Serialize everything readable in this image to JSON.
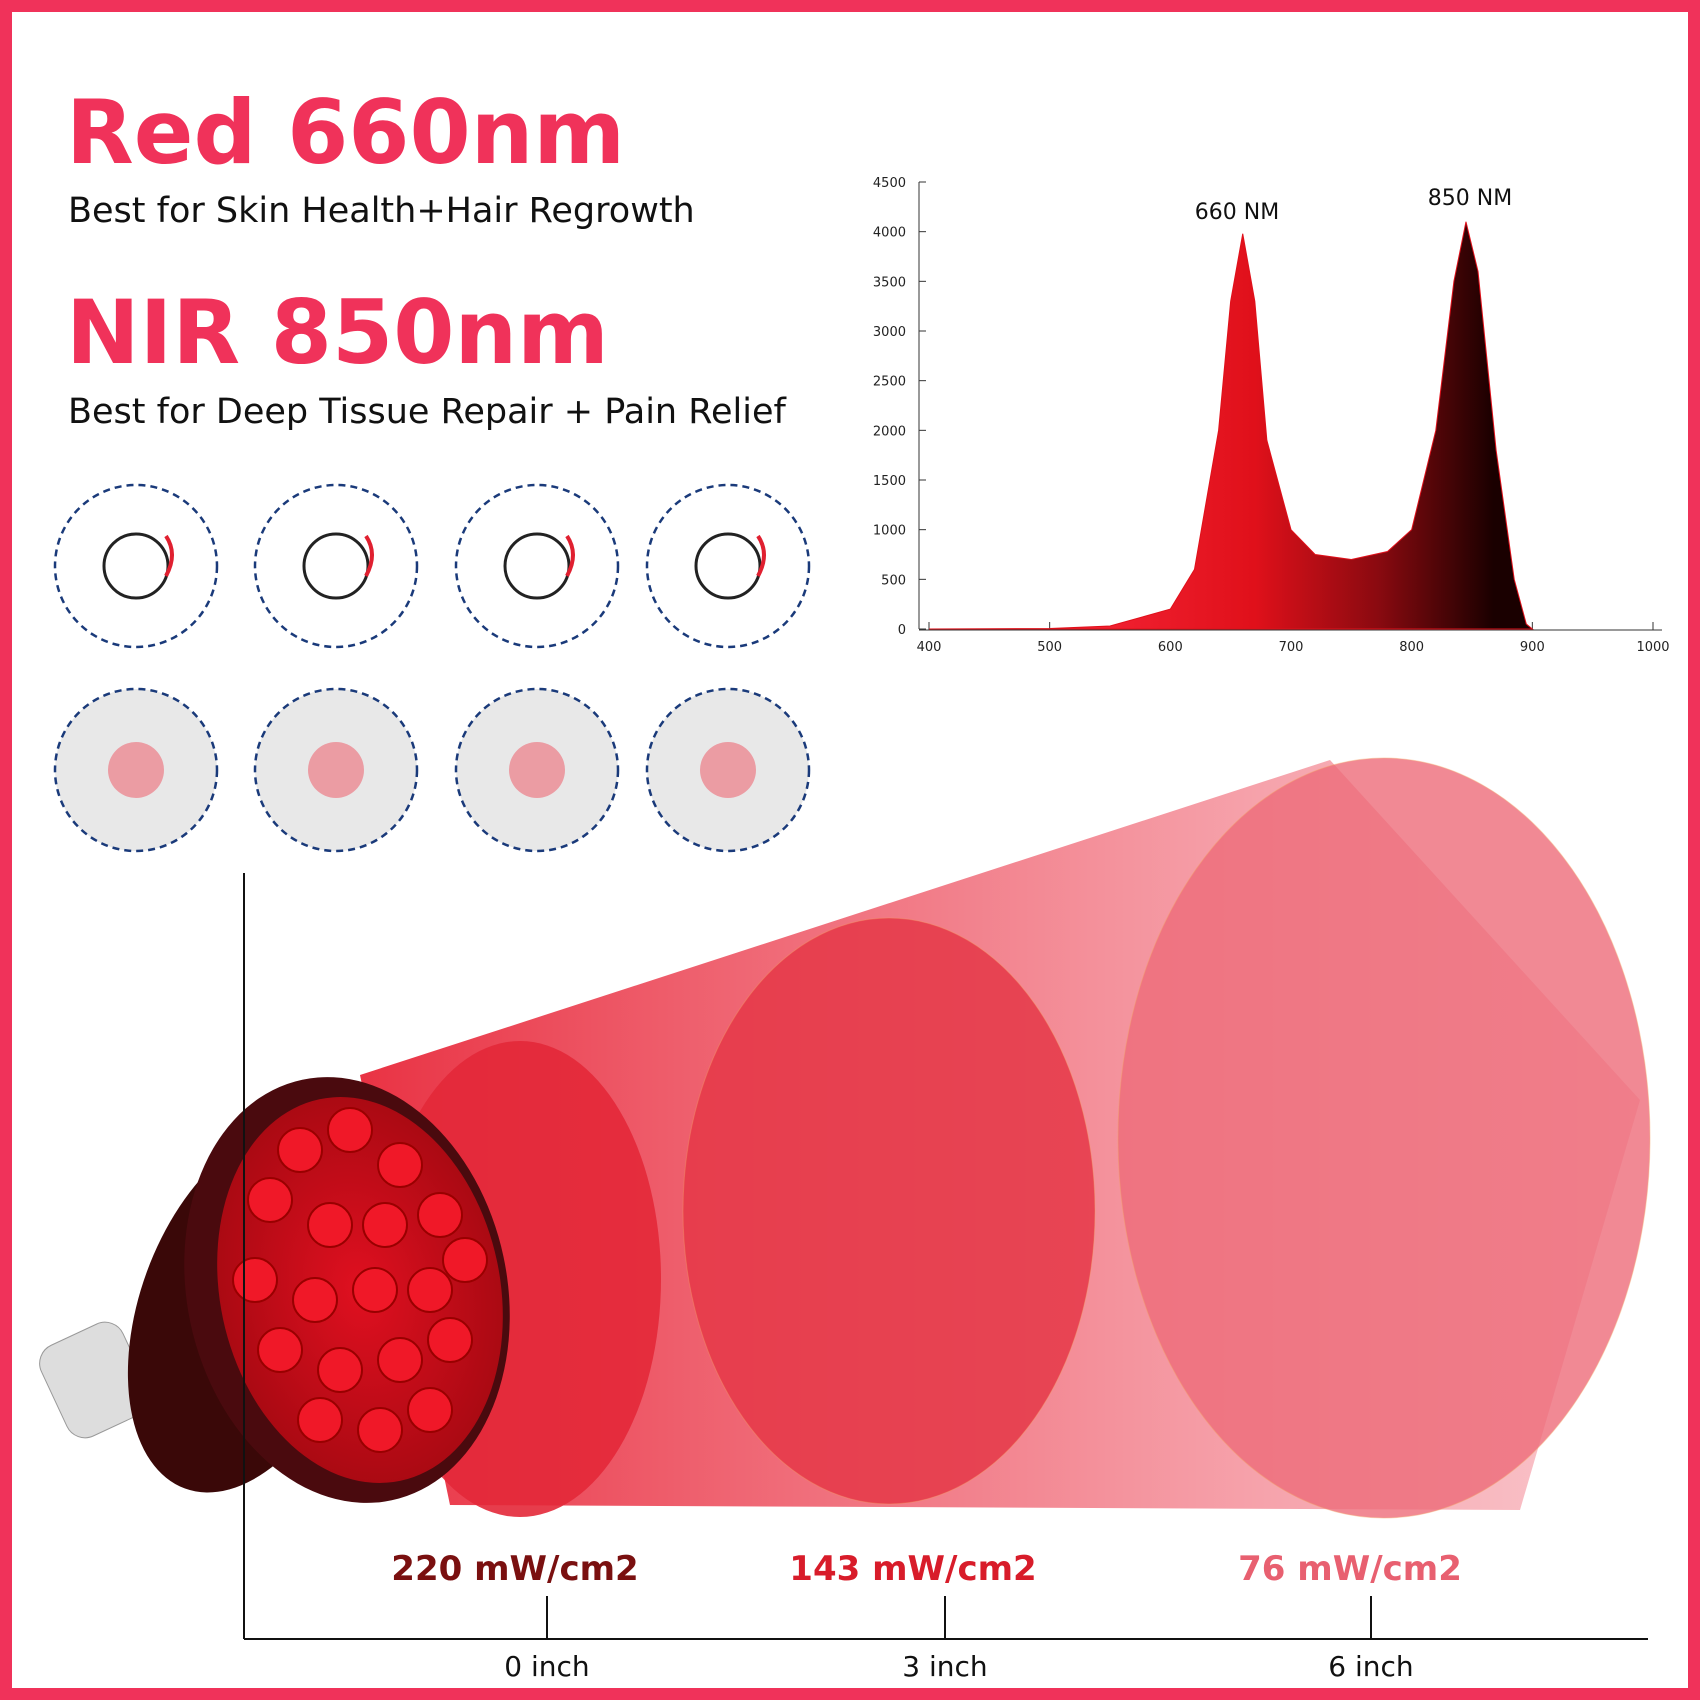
{
  "header": {
    "red_title": "Red 660nm",
    "red_subtitle": "Best for Skin Health+Hair Regrowth",
    "nir_title": "NIR 850nm",
    "nir_subtitle": "Best for Deep Tissue Repair + Pain Relief"
  },
  "chart_data": {
    "type": "area",
    "x": [
      400,
      500,
      550,
      600,
      620,
      640,
      650,
      660,
      670,
      680,
      700,
      720,
      750,
      780,
      800,
      820,
      835,
      845,
      855,
      870,
      885,
      895,
      900
    ],
    "series": [
      {
        "color": "#e0101a",
        "values": [
          0,
          5,
          30,
          200,
          600,
          2000,
          3300,
          3980,
          3300,
          1900,
          1000,
          750,
          700,
          780,
          1000,
          2000,
          3500,
          4100,
          3600,
          1800,
          500,
          50,
          0
        ]
      }
    ],
    "xlim": [
      400,
      1000
    ],
    "ylim": [
      0,
      4500
    ],
    "xticks": [
      400,
      500,
      600,
      700,
      800,
      900,
      1000
    ],
    "yticks": [
      0,
      500,
      1000,
      1500,
      2000,
      2500,
      3000,
      3500,
      4000,
      4500
    ],
    "annotations": [
      "660 NM",
      "850 NM"
    ]
  },
  "irradiance": [
    {
      "power": "220 mW/cm2",
      "distance": "0 inch"
    },
    {
      "power": "143 mW/cm2",
      "distance": "3 inch"
    },
    {
      "power": "76 mW/cm2",
      "distance": "6 inch"
    }
  ]
}
